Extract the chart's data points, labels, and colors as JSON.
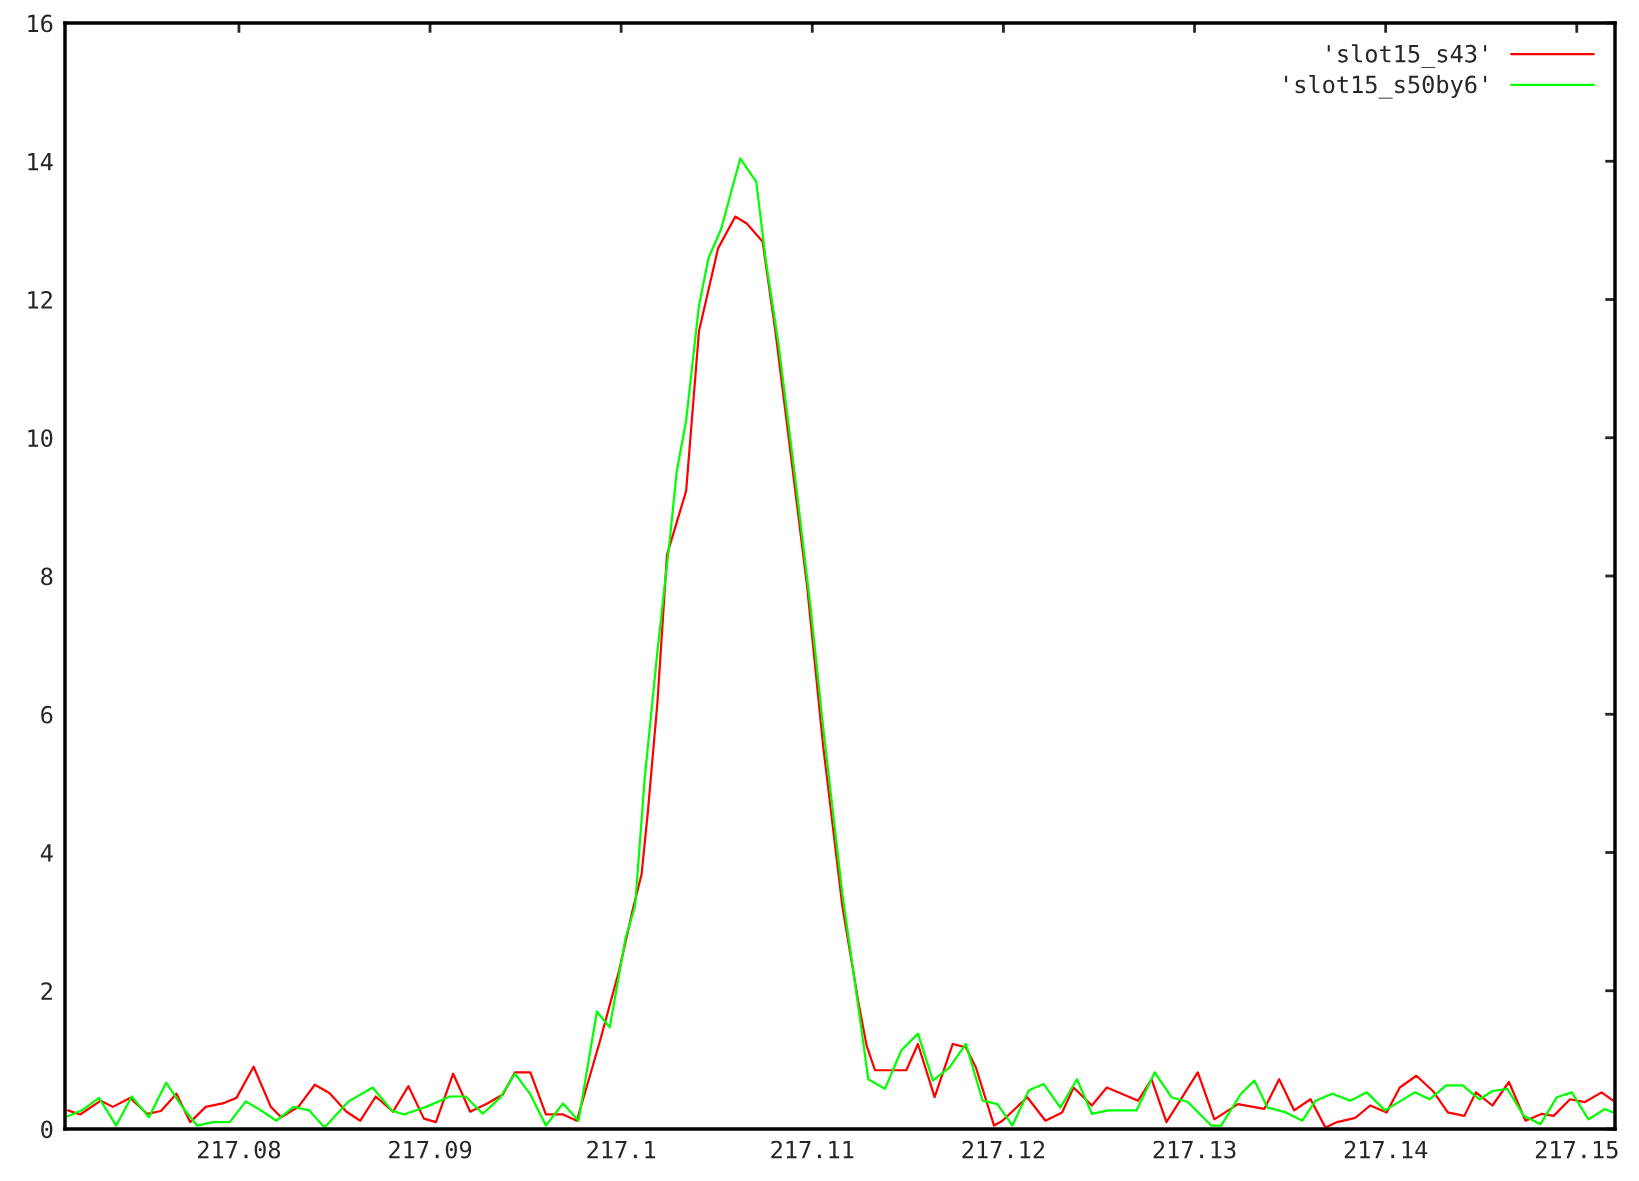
{
  "chart_data": {
    "type": "line",
    "xlim": [
      217.0709,
      217.152
    ],
    "ylim": [
      0,
      16
    ],
    "xticks": [
      217.08,
      217.09,
      217.1,
      217.11,
      217.12,
      217.13,
      217.14,
      217.15
    ],
    "yticks": [
      0,
      2,
      4,
      6,
      8,
      10,
      12,
      14,
      16
    ],
    "grid": false,
    "legend": "top right",
    "line_style": "solid",
    "series": [
      {
        "name": "'slot15_s43'",
        "color": "#ff0000",
        "x": [
          217.07106,
          217.07169,
          217.07277,
          217.0734,
          217.0743,
          217.0752,
          217.07592,
          217.07673,
          217.07745,
          217.07826,
          217.07915,
          217.07987,
          217.08077,
          217.08167,
          217.08221,
          217.08311,
          217.08397,
          217.08473,
          217.08563,
          217.08635,
          217.08716,
          217.08806,
          217.08887,
          217.08968,
          217.09031,
          217.09121,
          217.0921,
          217.093,
          217.09381,
          217.09444,
          217.09525,
          217.09606,
          217.09696,
          217.09768,
          217.0989,
          217.0999,
          217.10057,
          217.10107,
          217.1014,
          217.1019,
          217.1024,
          217.1034,
          217.10407,
          217.10507,
          217.10597,
          217.10657,
          217.1074,
          217.10807,
          217.1089,
          217.10973,
          217.11057,
          217.11157,
          217.11241,
          217.11284,
          217.11328,
          217.11492,
          217.11553,
          217.1164,
          217.11735,
          217.11804,
          217.11856,
          217.11951,
          217.11995,
          217.12125,
          217.1222,
          217.12307,
          217.12367,
          217.12463,
          217.12541,
          217.12705,
          217.12775,
          217.12853,
          217.13017,
          217.13104,
          217.13227,
          217.13365,
          217.13443,
          217.13521,
          217.13607,
          217.13685,
          217.13746,
          217.13841,
          217.13919,
          217.14005,
          217.14074,
          217.14161,
          217.14247,
          217.14325,
          217.14412,
          217.14472,
          217.14559,
          217.14645,
          217.14732,
          217.14818,
          217.14879,
          217.14965,
          217.15043,
          217.1513,
          217.1519
        ],
        "values": [
          0.27,
          0.21,
          0.41,
          0.32,
          0.45,
          0.22,
          0.26,
          0.51,
          0.1,
          0.32,
          0.37,
          0.45,
          0.9,
          0.32,
          0.17,
          0.32,
          0.64,
          0.52,
          0.25,
          0.12,
          0.47,
          0.25,
          0.62,
          0.15,
          0.1,
          0.8,
          0.25,
          0.37,
          0.5,
          0.82,
          0.82,
          0.21,
          0.21,
          0.12,
          1.28,
          2.3,
          3.13,
          3.69,
          4.6,
          6.18,
          8.31,
          9.23,
          11.54,
          12.74,
          13.2,
          13.1,
          12.84,
          11.54,
          9.7,
          7.85,
          5.54,
          3.23,
          1.84,
          1.21,
          0.85,
          0.85,
          1.23,
          0.46,
          1.23,
          1.18,
          0.89,
          0.05,
          0.12,
          0.46,
          0.12,
          0.24,
          0.6,
          0.34,
          0.6,
          0.41,
          0.72,
          0.1,
          0.82,
          0.14,
          0.36,
          0.29,
          0.72,
          0.27,
          0.43,
          0.02,
          0.1,
          0.16,
          0.34,
          0.24,
          0.6,
          0.77,
          0.55,
          0.24,
          0.19,
          0.53,
          0.34,
          0.68,
          0.12,
          0.22,
          0.19,
          0.43,
          0.39,
          0.53,
          0.41
        ]
      },
      {
        "name": "'slot15_s50by6'",
        "color": "#00ff00",
        "x": [
          217.07092,
          217.07178,
          217.07268,
          217.07358,
          217.07439,
          217.07529,
          217.07619,
          217.07709,
          217.07781,
          217.07862,
          217.07952,
          217.08036,
          217.08115,
          217.08196,
          217.08286,
          217.08367,
          217.08448,
          217.08574,
          217.087,
          217.08799,
          217.08862,
          217.08979,
          217.09105,
          217.09186,
          217.09276,
          217.09366,
          217.09444,
          217.09525,
          217.09606,
          217.09696,
          217.09777,
          217.09873,
          217.0994,
          217.10023,
          217.10073,
          217.10123,
          217.1019,
          217.10257,
          217.1029,
          217.1034,
          217.10407,
          217.10457,
          217.10523,
          217.10623,
          217.10707,
          217.10757,
          217.10823,
          217.10907,
          217.1099,
          217.11057,
          217.11157,
          217.1125,
          217.11293,
          217.1138,
          217.11466,
          217.11553,
          217.11631,
          217.11718,
          217.11804,
          217.11891,
          217.11969,
          217.12047,
          217.12133,
          217.12211,
          217.12298,
          217.12385,
          217.12463,
          217.12549,
          217.12697,
          217.12792,
          217.12879,
          217.12965,
          217.13087,
          217.13139,
          217.13243,
          217.13313,
          217.13382,
          217.13478,
          217.13564,
          217.13633,
          217.1372,
          217.13815,
          217.13901,
          217.13997,
          217.14152,
          217.1423,
          217.14317,
          217.14403,
          217.1449,
          217.14559,
          217.14637,
          217.14723,
          217.1481,
          217.14896,
          217.14974,
          217.15061,
          217.15147,
          217.1519
        ],
        "values": [
          0.17,
          0.27,
          0.45,
          0.05,
          0.47,
          0.17,
          0.67,
          0.3,
          0.05,
          0.1,
          0.1,
          0.4,
          0.27,
          0.12,
          0.32,
          0.27,
          0.02,
          0.4,
          0.6,
          0.27,
          0.21,
          0.32,
          0.47,
          0.47,
          0.22,
          0.45,
          0.8,
          0.5,
          0.05,
          0.37,
          0.12,
          1.7,
          1.47,
          2.76,
          3.23,
          5.07,
          6.92,
          8.59,
          9.5,
          10.25,
          11.91,
          12.6,
          13.02,
          14.04,
          13.7,
          12.56,
          11.36,
          9.5,
          7.57,
          5.81,
          3.41,
          1.59,
          0.72,
          0.58,
          1.14,
          1.38,
          0.7,
          0.89,
          1.23,
          0.41,
          0.36,
          0.05,
          0.56,
          0.65,
          0.31,
          0.72,
          0.22,
          0.27,
          0.27,
          0.82,
          0.46,
          0.39,
          0.05,
          0.05,
          0.51,
          0.7,
          0.31,
          0.24,
          0.12,
          0.41,
          0.51,
          0.41,
          0.53,
          0.27,
          0.53,
          0.43,
          0.63,
          0.63,
          0.43,
          0.55,
          0.58,
          0.19,
          0.07,
          0.46,
          0.53,
          0.14,
          0.29,
          0.24
        ]
      }
    ]
  }
}
